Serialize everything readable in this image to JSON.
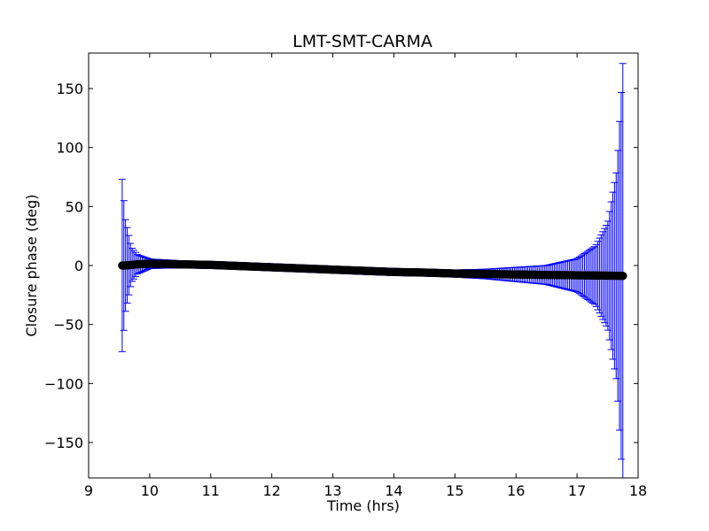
{
  "chart_data": {
    "type": "scatter",
    "title": "LMT-SMT-CARMA",
    "xlabel": "Time (hrs)",
    "ylabel": "Closure phase (deg)",
    "xlim": [
      9,
      18
    ],
    "ylim": [
      -180,
      180
    ],
    "xticks": [
      9,
      10,
      11,
      12,
      13,
      14,
      15,
      16,
      17,
      18
    ],
    "yticks": [
      -150,
      -100,
      -50,
      0,
      50,
      100,
      150
    ],
    "xtick_labels": [
      "9",
      "10",
      "11",
      "12",
      "13",
      "14",
      "15",
      "16",
      "17",
      "18"
    ],
    "ytick_labels": [
      "−150",
      "−100",
      "−50",
      "0",
      "50",
      "100",
      "150"
    ],
    "grid": false,
    "marker_color": "#000000",
    "errorbar_color": "#0000ff",
    "series": [
      {
        "x": [
          9.55,
          9.6,
          9.7,
          9.8,
          10.0,
          10.5,
          11.0,
          11.5,
          12.0,
          12.5,
          13.0,
          13.5,
          14.0,
          14.5,
          15.0,
          15.5,
          16.0,
          16.5,
          17.0,
          17.3,
          17.5,
          17.65,
          17.75
        ],
        "y": [
          0,
          0,
          0.5,
          1,
          1.5,
          1,
          0.5,
          -0.5,
          -1.5,
          -2.5,
          -3.5,
          -4.5,
          -5.5,
          -6,
          -6.8,
          -7.2,
          -7.6,
          -8,
          -8.3,
          -8.5,
          -8.6,
          -8.7,
          -8.8
        ],
        "yerr": [
          73,
          40,
          15,
          8,
          4,
          3,
          3,
          3,
          3,
          3,
          3,
          3,
          3,
          3,
          3,
          4,
          6,
          8,
          14,
          25,
          45,
          90,
          180
        ]
      }
    ]
  }
}
